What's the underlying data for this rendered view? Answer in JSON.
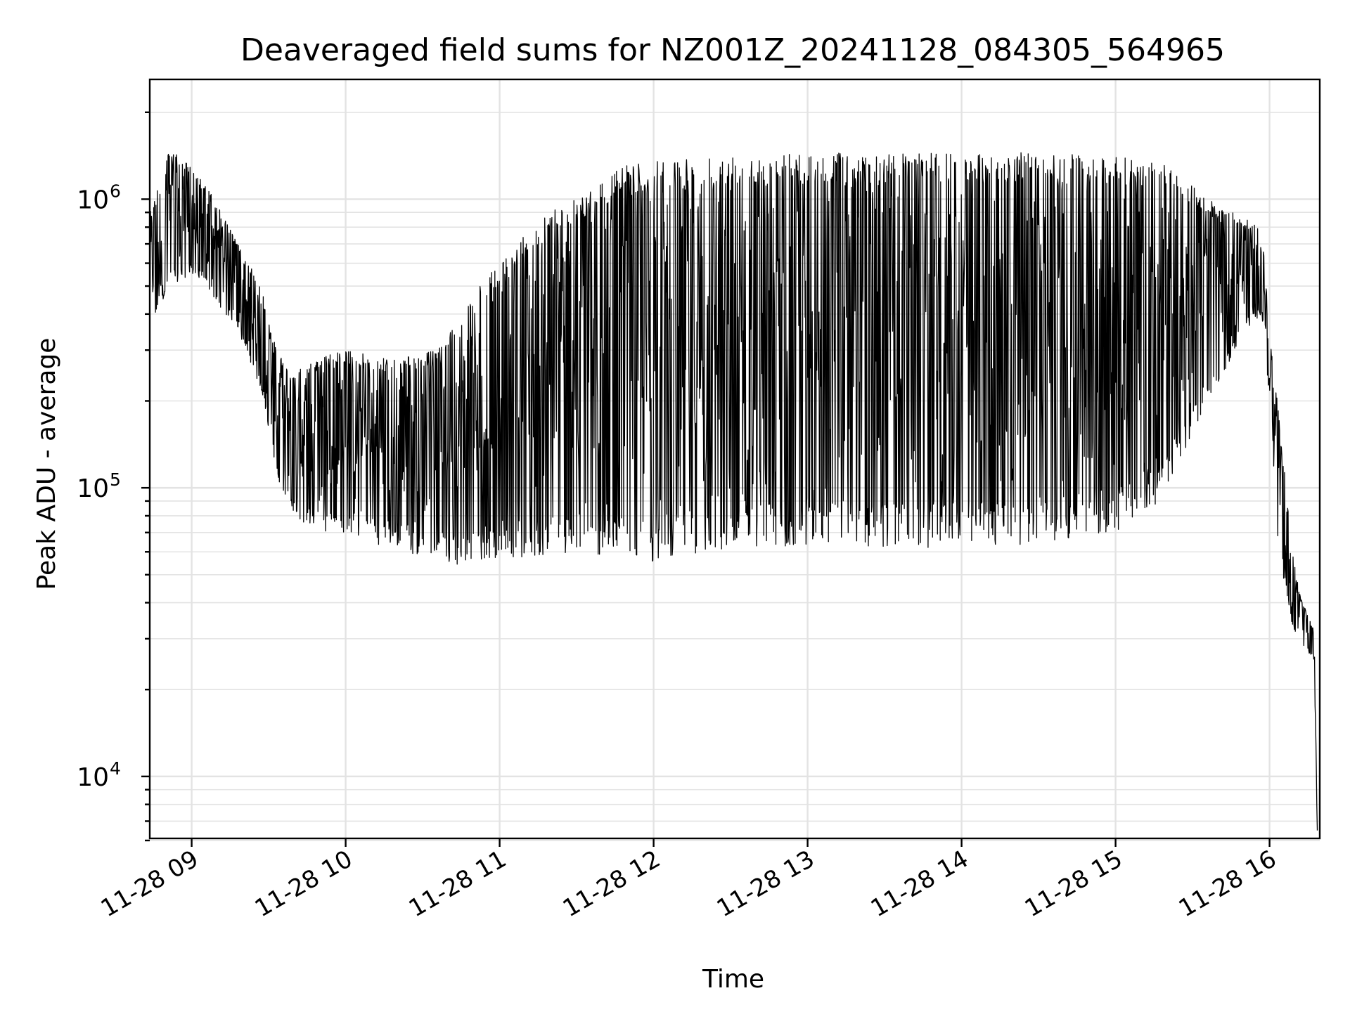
{
  "chart_data": {
    "type": "line",
    "title": "Deaveraged field sums for NZ001Z_20241128_084305_564965",
    "xlabel": "Time",
    "ylabel": "Peak ADU - average",
    "yscale": "log",
    "grid": "major and minor",
    "legend": "none",
    "xlim": [
      "2024-11-28 08:43",
      "2024-11-28 16:19"
    ],
    "ylim": [
      6000,
      2600000
    ],
    "xticks": [
      "11-28 09",
      "11-28 10",
      "11-28 11",
      "11-28 12",
      "11-28 13",
      "11-28 14",
      "11-28 15",
      "11-28 16"
    ],
    "xtick_hours": [
      9,
      10,
      11,
      12,
      13,
      14,
      15,
      16
    ],
    "yticks": [
      {
        "value": 10000,
        "base": "10",
        "exp": "4"
      },
      {
        "value": 100000,
        "base": "10",
        "exp": "5"
      },
      {
        "value": 1000000,
        "base": "10",
        "exp": "6"
      }
    ],
    "series": [
      {
        "color": "#000000",
        "envelope_note_hours_and_values": true,
        "time_hours": [
          8.73,
          8.85,
          9.0,
          9.15,
          9.3,
          9.45,
          9.55,
          9.65,
          9.8,
          10.0,
          10.3,
          10.6,
          10.8,
          11.0,
          11.3,
          11.6,
          11.8,
          12.0,
          12.3,
          12.6,
          13.0,
          13.5,
          14.0,
          14.5,
          15.0,
          15.3,
          15.6,
          15.85,
          15.95,
          16.0,
          16.05,
          16.1,
          16.15,
          16.2,
          16.25,
          16.29,
          16.31
        ],
        "upper_peak_adu": [
          900000,
          1500000,
          1300000,
          1000000,
          700000,
          500000,
          300000,
          250000,
          280000,
          300000,
          280000,
          300000,
          450000,
          600000,
          900000,
          1100000,
          1300000,
          1350000,
          1400000,
          1450000,
          1450000,
          1450000,
          1450000,
          1450000,
          1400000,
          1350000,
          1000000,
          850000,
          800000,
          350000,
          200000,
          110000,
          60000,
          42000,
          36000,
          32000,
          6500
        ],
        "lower_peak_adu": [
          350000,
          500000,
          550000,
          450000,
          350000,
          220000,
          110000,
          80000,
          72000,
          68000,
          62000,
          55000,
          53000,
          57000,
          58000,
          57000,
          57000,
          55000,
          58000,
          60000,
          62000,
          62000,
          62000,
          64000,
          70000,
          90000,
          200000,
          350000,
          400000,
          200000,
          70000,
          45000,
          33000,
          28000,
          27000,
          25000,
          6500
        ]
      }
    ]
  }
}
